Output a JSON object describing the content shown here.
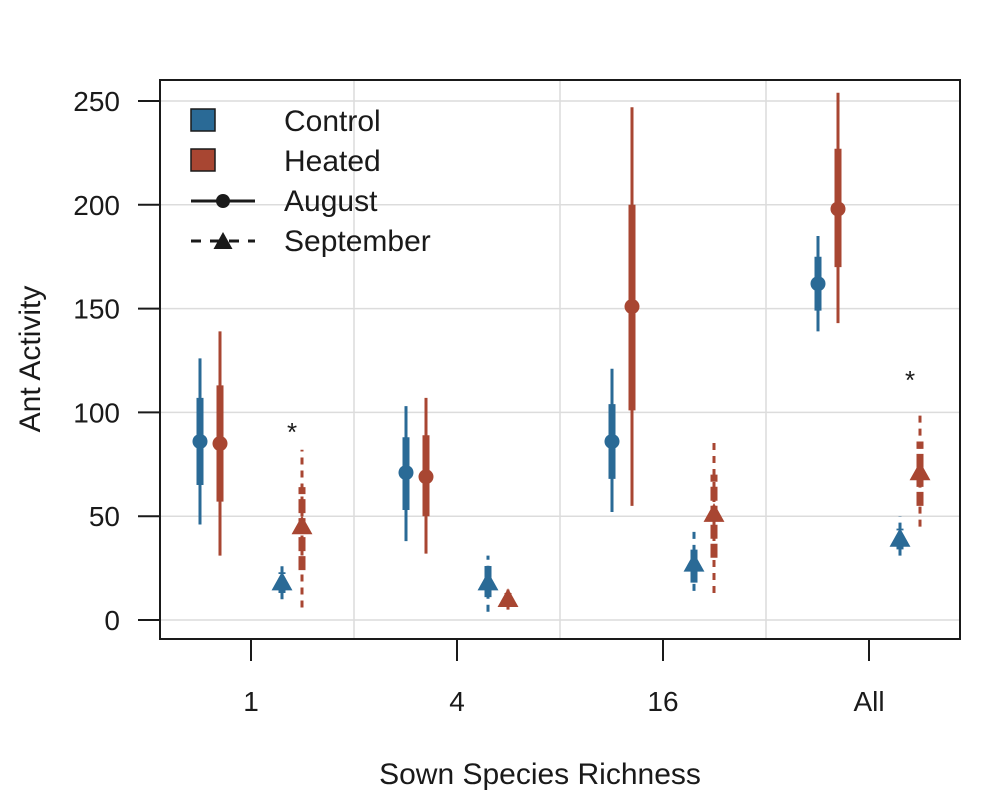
{
  "chart_data": {
    "type": "pointrange",
    "xlabel": "Sown Species Richness",
    "ylabel": "Ant Activity",
    "categories": [
      "1",
      "4",
      "16",
      "All"
    ],
    "ylim": [
      -10,
      260
    ],
    "yticks": [
      0,
      50,
      100,
      150,
      200,
      250
    ],
    "grid": true,
    "legend_position": "top-left",
    "legend": {
      "treatments": [
        {
          "name": "Control",
          "color": "#2a6a96"
        },
        {
          "name": "Heated",
          "color": "#a84632"
        }
      ],
      "months": [
        {
          "name": "August",
          "marker": "circle",
          "line": "solid"
        },
        {
          "name": "September",
          "marker": "triangle",
          "line": "dashed"
        }
      ]
    },
    "series": [
      {
        "treatment": "Control",
        "month": "August",
        "values": [
          {
            "category": "1",
            "mean": 86,
            "inner": [
              65,
              107
            ],
            "outer": [
              46,
              126
            ]
          },
          {
            "category": "4",
            "mean": 71,
            "inner": [
              53,
              88
            ],
            "outer": [
              38,
              103
            ]
          },
          {
            "category": "16",
            "mean": 86,
            "inner": [
              68,
              104
            ],
            "outer": [
              52,
              121
            ]
          },
          {
            "category": "All",
            "mean": 162,
            "inner": [
              149,
              175
            ],
            "outer": [
              139,
              185
            ]
          }
        ]
      },
      {
        "treatment": "Heated",
        "month": "August",
        "values": [
          {
            "category": "1",
            "mean": 85,
            "inner": [
              57,
              113
            ],
            "outer": [
              31,
              139
            ]
          },
          {
            "category": "4",
            "mean": 69,
            "inner": [
              50,
              89
            ],
            "outer": [
              32,
              107
            ]
          },
          {
            "category": "16",
            "mean": 151,
            "inner": [
              101,
              200
            ],
            "outer": [
              55,
              247
            ]
          },
          {
            "category": "All",
            "mean": 198,
            "inner": [
              170,
              227
            ],
            "outer": [
              143,
              254
            ]
          }
        ]
      },
      {
        "treatment": "Control",
        "month": "September",
        "values": [
          {
            "category": "1",
            "mean": 18,
            "inner": [
              13,
              23
            ],
            "outer": [
              10,
              27
            ]
          },
          {
            "category": "4",
            "mean": 18,
            "inner": [
              11,
              26
            ],
            "outer": [
              4,
              31
            ]
          },
          {
            "category": "16",
            "mean": 27,
            "inner": [
              18,
              36
            ],
            "outer": [
              14,
              43
            ]
          },
          {
            "category": "All",
            "mean": 39,
            "inner": [
              34,
              44
            ],
            "outer": [
              31,
              50
            ]
          }
        ]
      },
      {
        "treatment": "Heated",
        "month": "September",
        "values": [
          {
            "category": "1",
            "mean": 45,
            "inner": [
              24,
              64
            ],
            "outer": [
              6,
              82
            ]
          },
          {
            "category": "4",
            "mean": 10,
            "inner": [
              7,
              13
            ],
            "outer": [
              5,
              15
            ]
          },
          {
            "category": "16",
            "mean": 51,
            "inner": [
              30,
              70
            ],
            "outer": [
              13,
              88
            ]
          },
          {
            "category": "All",
            "mean": 71,
            "inner": [
              55,
              86
            ],
            "outer": [
              45,
              100
            ]
          }
        ]
      }
    ],
    "annotations": [
      {
        "text": "*",
        "category": "1",
        "month": "September",
        "y": 93
      },
      {
        "text": "*",
        "category": "All",
        "month": "September",
        "y": 118
      }
    ]
  }
}
